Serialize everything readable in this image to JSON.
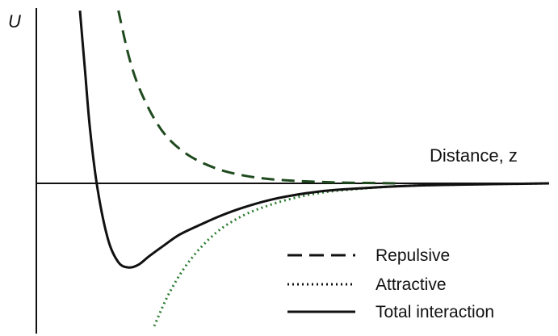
{
  "chart_data": {
    "type": "line",
    "title": "",
    "xlabel": "Distance, z",
    "ylabel": "U",
    "xlim": [
      0,
      10
    ],
    "ylim": [
      -1.9,
      2.3
    ],
    "grid": false,
    "legend_position": "bottom-right",
    "series": [
      {
        "name": "Repulsive",
        "style": "dashed",
        "color": "#1f4a1f",
        "x": [
          1.6,
          1.8,
          2.0,
          2.3,
          2.6,
          3.0,
          3.5,
          4.0,
          4.5,
          5.0,
          5.5,
          6.0,
          7.0
        ],
        "values": [
          2.3,
          1.7,
          1.28,
          0.86,
          0.58,
          0.36,
          0.2,
          0.11,
          0.06,
          0.035,
          0.02,
          0.01,
          0.0
        ]
      },
      {
        "name": "Attractive",
        "style": "dotted",
        "color": "#2e7d32",
        "x": [
          2.3,
          2.6,
          3.0,
          3.5,
          4.0,
          4.5,
          5.0,
          5.5,
          6.0,
          7.0,
          8.0,
          9.0,
          10.0
        ],
        "values": [
          -1.9,
          -1.45,
          -1.02,
          -0.66,
          -0.44,
          -0.3,
          -0.2,
          -0.13,
          -0.09,
          -0.04,
          -0.02,
          -0.01,
          0.0
        ]
      },
      {
        "name": "Total interaction",
        "style": "solid",
        "color": "#111111",
        "x": [
          0.85,
          0.95,
          1.05,
          1.2,
          1.4,
          1.6,
          1.8,
          2.0,
          2.2,
          2.5,
          2.8,
          3.2,
          3.6,
          4.0,
          4.5,
          5.0,
          5.5,
          6.0,
          7.0,
          8.0,
          9.0,
          10.0
        ],
        "values": [
          2.3,
          1.5,
          0.7,
          -0.1,
          -0.75,
          -1.05,
          -1.12,
          -1.08,
          -0.97,
          -0.82,
          -0.68,
          -0.55,
          -0.43,
          -0.33,
          -0.23,
          -0.16,
          -0.11,
          -0.08,
          -0.04,
          -0.02,
          -0.01,
          0.0
        ]
      }
    ]
  }
}
